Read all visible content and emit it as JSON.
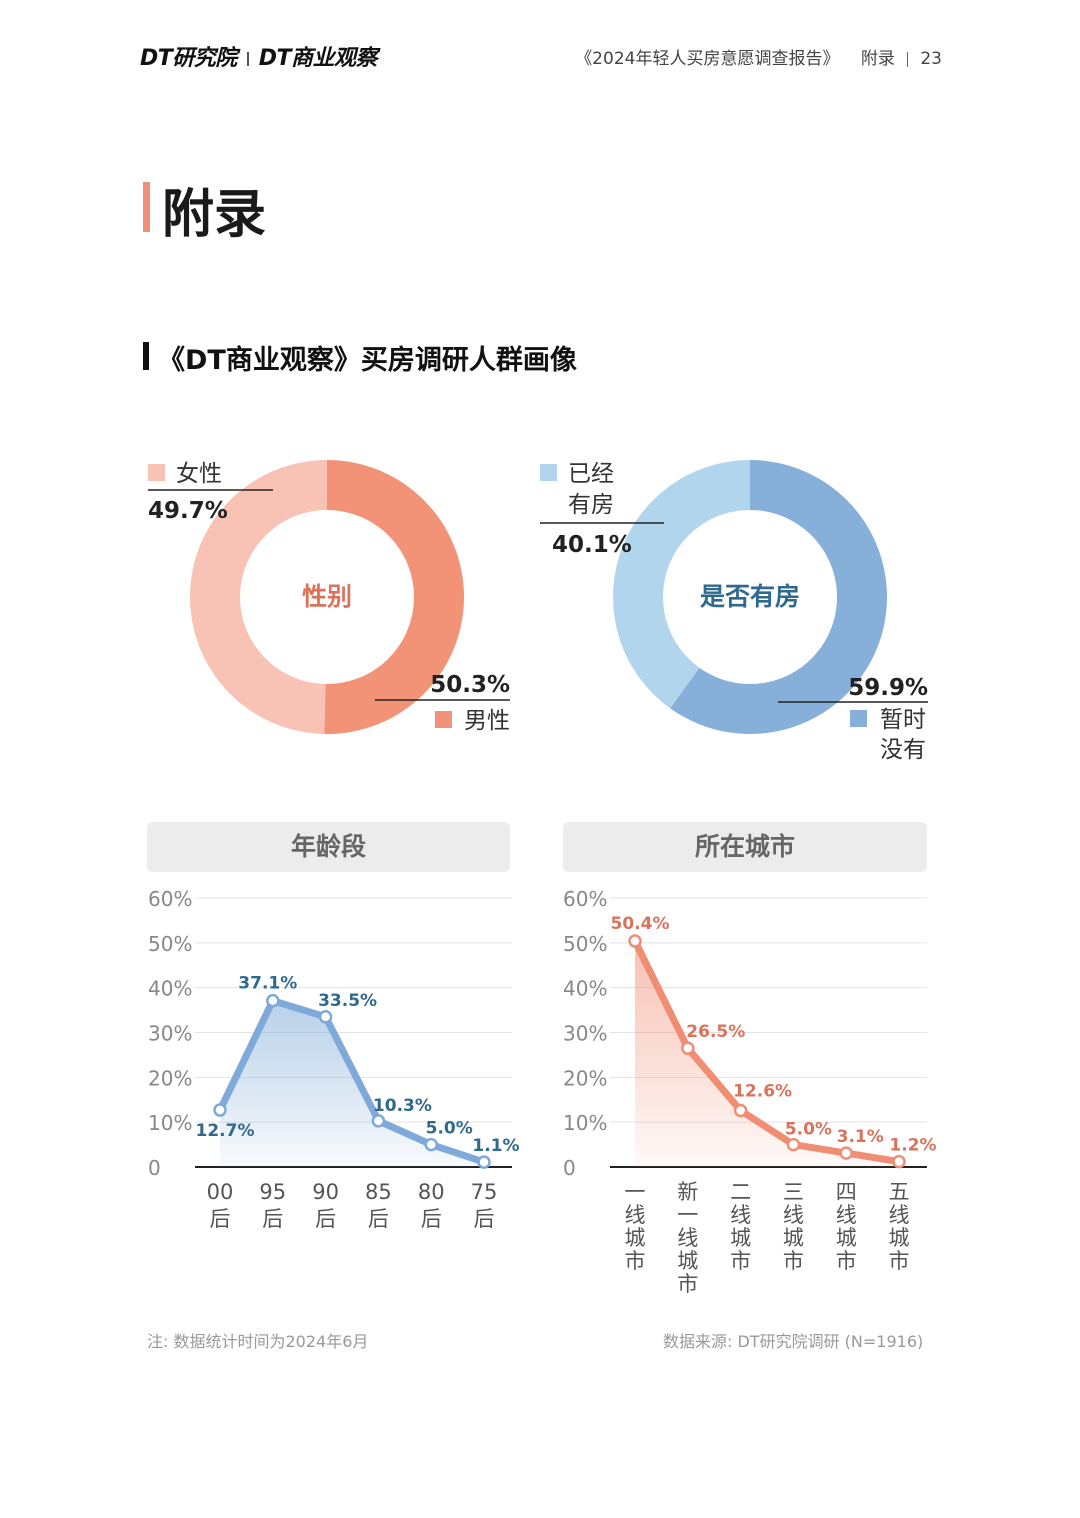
{
  "header": {
    "logo_a": "DT研究院",
    "logo_b": "DT商业观察",
    "report": "《2024年轻人买房意愿调查报告》",
    "section": "附录",
    "page": "23"
  },
  "page_title": "附录",
  "subtitle": "《DT商业观察》买房调研人群画像",
  "footer": {
    "note": "注: 数据统计时间为2024年6月",
    "source": "数据来源: DT研究院调研 (N=1916)"
  },
  "chart_data": [
    {
      "type": "pie",
      "title": "性别",
      "labels": [
        "男性",
        "女性"
      ],
      "values": [
        50.3,
        49.7
      ],
      "value_labels": [
        "50.3%",
        "49.7%"
      ],
      "colors": [
        "#f29377",
        "#f8c2b4"
      ]
    },
    {
      "type": "pie",
      "title": "是否有房",
      "labels": [
        "暂时没有",
        "已经有房"
      ],
      "values": [
        59.9,
        40.1
      ],
      "value_labels": [
        "59.9%",
        "40.1%"
      ],
      "colors": [
        "#86b0d9",
        "#b2d5ee"
      ]
    },
    {
      "type": "area",
      "title": "年龄段",
      "categories": [
        "00后",
        "95后",
        "90后",
        "85后",
        "80后",
        "75后"
      ],
      "values": [
        12.7,
        37.1,
        33.5,
        10.3,
        5.0,
        1.1
      ],
      "value_labels": [
        "12.7%",
        "37.1%",
        "33.5%",
        "10.3%",
        "5.0%",
        "1.1%"
      ],
      "yticks": [
        "0",
        "10%",
        "20%",
        "30%",
        "40%",
        "50%",
        "60%"
      ],
      "ylim": [
        0,
        60
      ],
      "color": "#7ea9d8",
      "label_color": "#2f6a8e"
    },
    {
      "type": "area",
      "title": "所在城市",
      "categories": [
        "一线城市",
        "新一线城市",
        "二线城市",
        "三线城市",
        "四线城市",
        "五线城市"
      ],
      "values": [
        50.4,
        26.5,
        12.6,
        5.0,
        3.1,
        1.2
      ],
      "value_labels": [
        "50.4%",
        "26.5%",
        "12.6%",
        "5.0%",
        "3.1%",
        "1.2%"
      ],
      "yticks": [
        "0",
        "10%",
        "20%",
        "30%",
        "40%",
        "50%",
        "60%"
      ],
      "ylim": [
        0,
        60
      ],
      "color": "#f08e74",
      "label_color": "#d9735c"
    }
  ]
}
